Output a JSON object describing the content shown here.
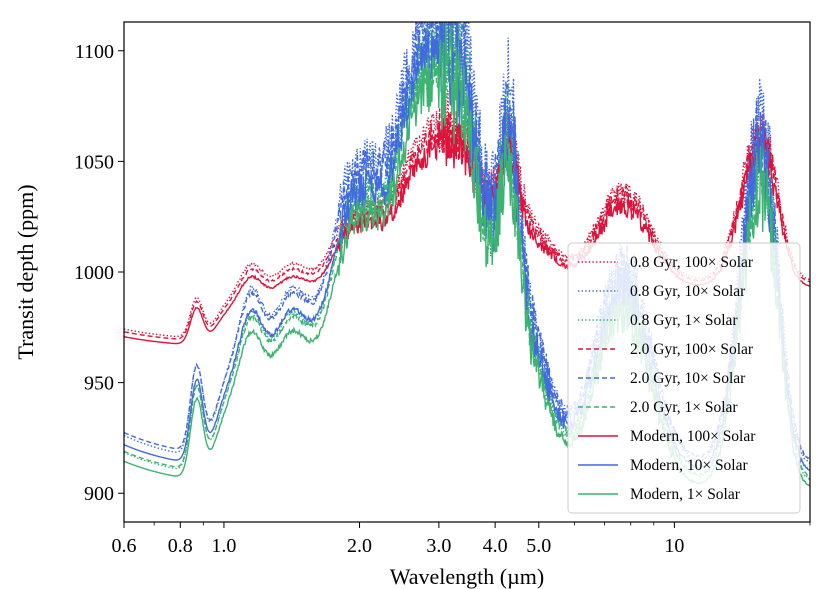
{
  "chart_data": {
    "type": "line",
    "title": "",
    "xlabel": "Wavelength (µm)",
    "ylabel": "Transit depth (ppm)",
    "xscale": "log",
    "xlim": [
      0.6,
      20.0
    ],
    "ylim": [
      887,
      1113
    ],
    "xticks": [
      0.6,
      0.8,
      1.0,
      2.0,
      3.0,
      4.0,
      5.0,
      10.0
    ],
    "xtick_labels": [
      "0.6",
      "0.8",
      "1.0",
      "2.0",
      "3.0",
      "4.0",
      "5.0",
      "10"
    ],
    "yticks": [
      900,
      950,
      1000,
      1050,
      1100
    ],
    "ytick_labels": [
      "900",
      "950",
      "1000",
      "1050",
      "1100"
    ],
    "grid": false,
    "legend_position": "lower-right",
    "colors": {
      "red": "#dc143c",
      "blue": "#4169e1",
      "green": "#3cb371"
    },
    "features": [
      {
        "c": 0.87,
        "w": 0.014,
        "a": 0.55,
        "sharp": true
      },
      {
        "c": 1.0,
        "w": 0.025,
        "a": 0.33
      },
      {
        "c": 1.14,
        "w": 0.03,
        "a": 0.9
      },
      {
        "c": 1.4,
        "w": 0.045,
        "a": 1.0
      },
      {
        "c": 1.85,
        "w": 0.05,
        "a": 1.1
      },
      {
        "c": 2.3,
        "w": 0.07,
        "a": 1.45
      },
      {
        "c": 2.7,
        "w": 0.04,
        "a": 1.0
      },
      {
        "c": 3.25,
        "w": 0.05,
        "a": 1.6
      },
      {
        "c": 3.6,
        "w": 0.09,
        "a": 1.05
      },
      {
        "c": 4.3,
        "w": 0.02,
        "a": 1.1,
        "sharp": true
      },
      {
        "c": 4.7,
        "w": 0.05,
        "a": 0.55
      },
      {
        "c": 7.7,
        "w": 0.06,
        "a": 1.25
      },
      {
        "c": 15.0,
        "w": 0.04,
        "a": 1.55,
        "sharp": true
      },
      {
        "c": 16.2,
        "w": 0.03,
        "a": 0.8
      }
    ],
    "series": [
      {
        "name": "0.8 Gyr, 100× Solar",
        "color": "red",
        "style": "dotted",
        "base": 968,
        "amp": 52,
        "slope": 0.12,
        "seed": 11
      },
      {
        "name": "0.8 Gyr, 10× Solar",
        "color": "blue",
        "style": "dotted",
        "base": 912,
        "amp": 118,
        "slope": 0.12,
        "seed": 12
      },
      {
        "name": "0.8 Gyr, 1× Solar",
        "color": "green",
        "style": "dotted",
        "base": 905,
        "amp": 112,
        "slope": 0.12,
        "seed": 13
      },
      {
        "name": "2.0 Gyr, 100× Solar",
        "color": "red",
        "style": "dashed",
        "base": 967,
        "amp": 50,
        "slope": 0.12,
        "seed": 21
      },
      {
        "name": "2.0 Gyr, 10× Solar",
        "color": "blue",
        "style": "dashed",
        "base": 914,
        "amp": 112,
        "slope": 0.12,
        "seed": 22
      },
      {
        "name": "2.0 Gyr, 1× Solar",
        "color": "green",
        "style": "dashed",
        "base": 906,
        "amp": 108,
        "slope": 0.12,
        "seed": 23
      },
      {
        "name": "Modern, 100× Solar",
        "color": "red",
        "style": "solid",
        "base": 965,
        "amp": 48,
        "slope": 0.12,
        "seed": 31
      },
      {
        "name": "Modern, 10× Solar",
        "color": "blue",
        "style": "solid",
        "base": 909,
        "amp": 108,
        "slope": 0.12,
        "seed": 32
      },
      {
        "name": "Modern, 1× Solar",
        "color": "green",
        "style": "solid",
        "base": 902,
        "amp": 104,
        "slope": 0.12,
        "seed": 33
      }
    ]
  }
}
